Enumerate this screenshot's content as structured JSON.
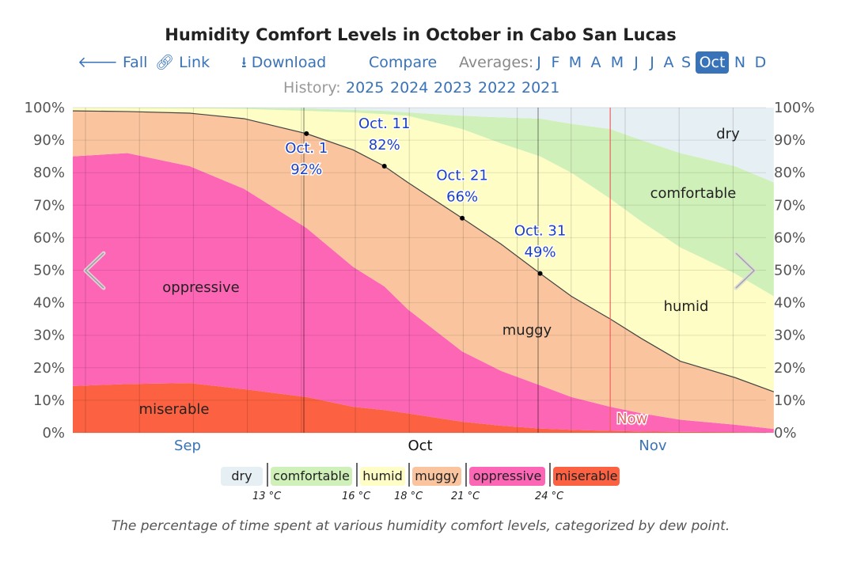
{
  "title": "Humidity Comfort Levels in October in Cabo San Lucas",
  "nav": {
    "fall": "Fall",
    "link": "Link",
    "download": "Download",
    "compare": "Compare",
    "averages_label": "Averages:",
    "months": [
      "J",
      "F",
      "M",
      "A",
      "M",
      "J",
      "J",
      "A",
      "S",
      "Oct",
      "N",
      "D"
    ],
    "selected_month": "Oct",
    "history_label": "History:",
    "years": [
      "2025",
      "2024",
      "2023",
      "2022",
      "2021"
    ]
  },
  "colors": {
    "dry": "#e6eff3",
    "comfortable": "#d0f0b9",
    "humid": "#fefdc5",
    "muggy": "#fac59e",
    "oppressive": "#fc66b5",
    "miserable": "#fc6141",
    "accent": "#3873b9",
    "annotation": "#1c3fc6",
    "now": "#f06060"
  },
  "legend": {
    "items": [
      "dry",
      "comfortable",
      "humid",
      "muggy",
      "oppressive",
      "miserable"
    ],
    "thresholds": [
      "13 °C",
      "16 °C",
      "18 °C",
      "21 °C",
      "24 °C"
    ]
  },
  "caption": "The percentage of time spent at various humidity comfort levels, categorized by dew point.",
  "chart_data": {
    "type": "area",
    "stacked": true,
    "x": [
      "Sep 1",
      "Sep 8",
      "Sep 16",
      "Sep 23",
      "Oct 1",
      "Oct 7",
      "Oct 11",
      "Oct 14",
      "Oct 21",
      "Oct 26",
      "Oct 31",
      "Nov 4",
      "Nov 9",
      "Nov 13",
      "Nov 18",
      "Nov 25",
      "Nov 30"
    ],
    "xlim": [
      "Sep 1",
      "Nov 30"
    ],
    "x_tick_labels": [
      "Sep",
      "Oct",
      "Nov"
    ],
    "highlighted_month": "Oct",
    "y_tick_labels": [
      "0%",
      "10%",
      "20%",
      "30%",
      "40%",
      "50%",
      "60%",
      "70%",
      "80%",
      "90%",
      "100%"
    ],
    "ylim": [
      0,
      100
    ],
    "grid": true,
    "series": [
      {
        "name": "miserable",
        "values": [
          14.4,
          15,
          15.3,
          13.4,
          11,
          8,
          7,
          6,
          3.4,
          2.2,
          1.3,
          0.9,
          0.6,
          0.4,
          0.3,
          0.2,
          0.1
        ]
      },
      {
        "name": "oppressive",
        "values": [
          70.6,
          71,
          66.7,
          61.6,
          52,
          43,
          38,
          32,
          21.6,
          16.8,
          13.3,
          10.1,
          7.4,
          5.6,
          3.7,
          2.3,
          1.1
        ]
      },
      {
        "name": "muggy",
        "values": [
          14,
          12.8,
          16.3,
          21.6,
          29,
          36,
          37,
          39,
          41,
          39,
          34.4,
          31,
          27,
          23,
          18,
          14.5,
          11.4
        ]
      },
      {
        "name": "humid",
        "values": [
          1,
          1.1,
          1.5,
          3,
          7,
          11.5,
          16,
          20.5,
          27.4,
          31,
          36,
          38,
          37,
          36,
          35,
          32,
          29.4
        ]
      },
      {
        "name": "comfortable",
        "values": [
          0,
          0.1,
          0.2,
          0.3,
          0.7,
          0.8,
          1,
          1,
          4.1,
          8,
          11.6,
          15,
          21.4,
          25,
          29,
          33,
          35
        ]
      },
      {
        "name": "dry",
        "values": [
          0,
          0,
          0,
          0.1,
          0.3,
          0.7,
          1,
          1.5,
          2.5,
          3,
          3.4,
          5,
          6.6,
          10,
          14,
          18,
          23
        ]
      }
    ],
    "annotations": [
      {
        "date": "Oct 1",
        "label": "Oct. 1",
        "value": "92%",
        "y": 92
      },
      {
        "date": "Oct 11",
        "label": "Oct. 11",
        "value": "82%",
        "y": 82
      },
      {
        "date": "Oct 21",
        "label": "Oct. 21",
        "value": "66%",
        "y": 66
      },
      {
        "date": "Oct 31",
        "label": "Oct. 31",
        "value": "49%",
        "y": 49
      }
    ],
    "now": {
      "label": "Now",
      "date": "Nov 9"
    }
  }
}
